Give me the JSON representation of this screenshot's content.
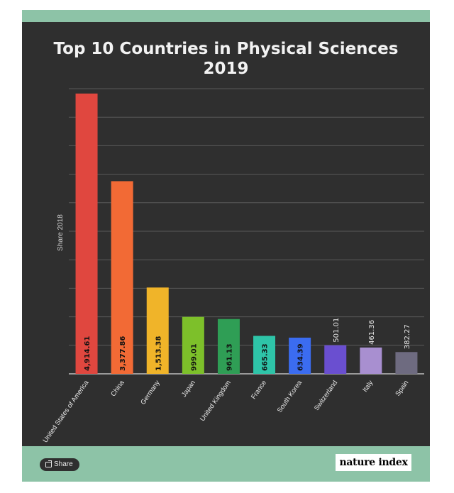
{
  "title_lines": [
    "Top 10 Countries in Physical Sciences",
    "2019"
  ],
  "share_button_label": "Share",
  "logo_text": "nature index",
  "colors": {
    "frame": "#8dc3a7",
    "panel": "#2f2f2f",
    "gridline": "#5a5a5a",
    "axis": "#bdbdbd",
    "text": "#e8e8e8"
  },
  "chart_data": {
    "type": "bar",
    "title": "Top 10 Countries in Physical Sciences 2019",
    "ylabel": "Share 2018",
    "xlabel": "",
    "ylim": [
      0,
      5000
    ],
    "grid": true,
    "categories": [
      "United States of America",
      "China",
      "Germany",
      "Japan",
      "United Kingdom",
      "France",
      "South Korea",
      "Switzerland",
      "Italy",
      "Spain"
    ],
    "values": [
      4914.61,
      3377.86,
      1513.38,
      999.01,
      961.13,
      665.33,
      634.39,
      501.01,
      461.36,
      382.27
    ],
    "value_labels": [
      "4,914.61",
      "3,377.86",
      "1,513.38",
      "999.01",
      "961.13",
      "665.33",
      "634.39",
      "501.01",
      "461.36",
      "382.27"
    ],
    "bar_colors": [
      "#e0473f",
      "#f26a35",
      "#f0b429",
      "#7dc02a",
      "#2f9e55",
      "#2ec4a8",
      "#3b6cf0",
      "#6a4fd0",
      "#a88fd0",
      "#6e6b80"
    ]
  }
}
